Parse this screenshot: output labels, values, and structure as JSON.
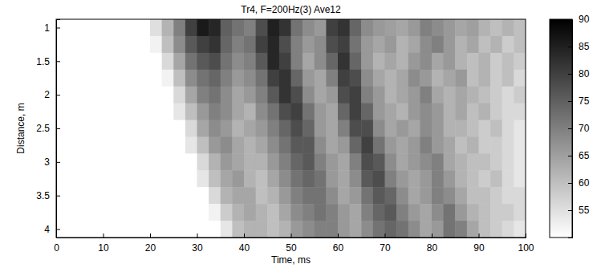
{
  "chart_data": {
    "type": "heatmap",
    "title": "Tr4, F=200Hz(3) Ave12",
    "x_label": "Time, ms",
    "y_label": "Distance, m",
    "x": [
      1.25,
      3.75,
      6.25,
      8.75,
      11.25,
      13.75,
      16.25,
      18.75,
      21.25,
      23.75,
      26.25,
      28.75,
      31.25,
      33.75,
      36.25,
      38.75,
      41.25,
      43.75,
      46.25,
      48.75,
      51.25,
      53.75,
      56.25,
      58.75,
      61.25,
      63.75,
      66.25,
      68.75,
      71.25,
      73.75,
      76.25,
      78.75,
      81.25,
      83.75,
      86.25,
      88.75,
      91.25,
      93.75,
      96.25,
      98.75
    ],
    "y": [
      1,
      1.25,
      1.5,
      1.75,
      2,
      2.25,
      2.5,
      2.75,
      3,
      3.25,
      3.5,
      3.75,
      4
    ],
    "values": [
      [
        50,
        50,
        50,
        50,
        50,
        50,
        50,
        50,
        55,
        62,
        70,
        80,
        86,
        84,
        75,
        72,
        70,
        78,
        85,
        82,
        72,
        68,
        66,
        80,
        82,
        74,
        68,
        66,
        65,
        64,
        66,
        70,
        68,
        66,
        64,
        65,
        62,
        60,
        62,
        60
      ],
      [
        50,
        50,
        50,
        50,
        50,
        50,
        50,
        50,
        52,
        60,
        68,
        76,
        80,
        82,
        74,
        70,
        72,
        80,
        84,
        78,
        70,
        66,
        68,
        78,
        80,
        72,
        66,
        64,
        66,
        62,
        64,
        68,
        70,
        66,
        62,
        64,
        60,
        62,
        58,
        60
      ],
      [
        50,
        50,
        50,
        50,
        50,
        50,
        50,
        50,
        50,
        56,
        64,
        72,
        76,
        78,
        72,
        68,
        70,
        76,
        84,
        80,
        70,
        64,
        68,
        74,
        82,
        74,
        66,
        62,
        64,
        62,
        66,
        68,
        64,
        66,
        62,
        60,
        62,
        58,
        60,
        58
      ],
      [
        50,
        50,
        50,
        50,
        50,
        50,
        50,
        50,
        50,
        52,
        60,
        68,
        72,
        74,
        70,
        66,
        68,
        72,
        80,
        82,
        74,
        66,
        64,
        70,
        80,
        78,
        68,
        64,
        62,
        64,
        68,
        66,
        62,
        64,
        66,
        60,
        62,
        58,
        60,
        56
      ],
      [
        50,
        50,
        50,
        50,
        50,
        50,
        50,
        50,
        50,
        50,
        56,
        64,
        70,
        72,
        68,
        64,
        66,
        70,
        76,
        82,
        78,
        68,
        64,
        66,
        78,
        80,
        70,
        66,
        62,
        64,
        66,
        70,
        64,
        62,
        64,
        62,
        60,
        58,
        56,
        58
      ],
      [
        50,
        50,
        50,
        50,
        50,
        50,
        50,
        50,
        50,
        50,
        54,
        60,
        66,
        70,
        68,
        64,
        62,
        68,
        72,
        78,
        80,
        72,
        66,
        64,
        74,
        80,
        74,
        66,
        64,
        62,
        66,
        68,
        66,
        62,
        64,
        60,
        62,
        58,
        56,
        56
      ],
      [
        50,
        50,
        50,
        50,
        50,
        50,
        50,
        50,
        50,
        50,
        50,
        56,
        64,
        68,
        66,
        62,
        64,
        66,
        70,
        74,
        78,
        74,
        66,
        64,
        70,
        78,
        78,
        68,
        64,
        66,
        64,
        68,
        66,
        62,
        62,
        60,
        58,
        60,
        56,
        54
      ],
      [
        50,
        50,
        50,
        50,
        50,
        50,
        50,
        50,
        50,
        50,
        50,
        54,
        60,
        66,
        68,
        64,
        62,
        64,
        68,
        72,
        76,
        76,
        68,
        64,
        66,
        74,
        80,
        72,
        66,
        64,
        66,
        70,
        66,
        64,
        60,
        62,
        58,
        58,
        56,
        54
      ],
      [
        50,
        50,
        50,
        50,
        50,
        50,
        50,
        50,
        50,
        50,
        50,
        50,
        56,
        62,
        66,
        64,
        62,
        62,
        66,
        70,
        74,
        76,
        70,
        66,
        64,
        70,
        78,
        76,
        68,
        64,
        66,
        68,
        70,
        64,
        62,
        60,
        60,
        58,
        56,
        54
      ],
      [
        50,
        50,
        50,
        50,
        50,
        50,
        50,
        50,
        50,
        50,
        50,
        50,
        54,
        60,
        64,
        66,
        62,
        60,
        64,
        68,
        72,
        74,
        72,
        66,
        64,
        68,
        76,
        78,
        70,
        66,
        64,
        66,
        70,
        66,
        62,
        60,
        58,
        60,
        56,
        54
      ],
      [
        50,
        50,
        50,
        50,
        50,
        50,
        50,
        50,
        50,
        50,
        50,
        50,
        50,
        56,
        62,
        64,
        64,
        60,
        62,
        66,
        70,
        72,
        72,
        68,
        64,
        66,
        72,
        76,
        74,
        68,
        64,
        66,
        70,
        68,
        64,
        60,
        60,
        58,
        56,
        56
      ],
      [
        50,
        50,
        50,
        50,
        50,
        50,
        50,
        50,
        50,
        50,
        50,
        50,
        50,
        52,
        58,
        62,
        64,
        62,
        60,
        64,
        68,
        70,
        72,
        70,
        66,
        64,
        70,
        74,
        76,
        70,
        66,
        64,
        68,
        72,
        66,
        62,
        60,
        58,
        58,
        56
      ],
      [
        50,
        50,
        50,
        50,
        50,
        50,
        50,
        50,
        50,
        50,
        50,
        50,
        50,
        50,
        54,
        60,
        62,
        62,
        60,
        62,
        66,
        68,
        70,
        70,
        66,
        64,
        68,
        72,
        74,
        72,
        68,
        64,
        66,
        72,
        70,
        64,
        60,
        58,
        56,
        54
      ]
    ],
    "xlim": [
      0,
      100
    ],
    "xticks": [
      0,
      10,
      20,
      30,
      40,
      50,
      60,
      70,
      80,
      90,
      100
    ],
    "ylim": [
      0.875,
      4.125
    ],
    "yticks": [
      1,
      1.5,
      2,
      2.5,
      3,
      3.5,
      4
    ],
    "colorbar": {
      "range": [
        50,
        90
      ],
      "ticks": [
        55,
        60,
        65,
        70,
        75,
        80,
        85,
        90
      ]
    }
  }
}
